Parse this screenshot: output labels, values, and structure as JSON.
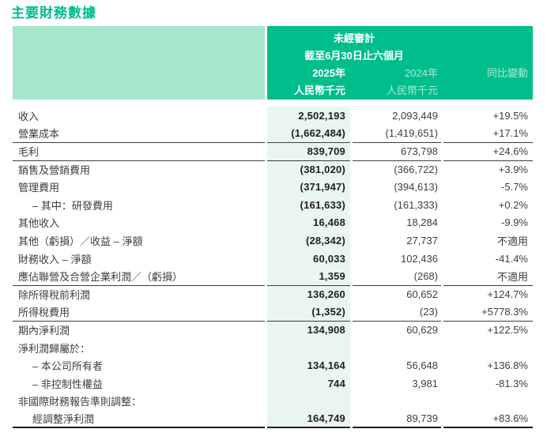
{
  "title": "主要財務數據",
  "colors": {
    "accent_green": "#00BE8C",
    "header_light_green": "#A7E5CD",
    "highlight_column_bg": "#E9F6F0",
    "number_bold_ink": "#1F1F1F",
    "body_text": "#3D3D3D",
    "rule_line": "#3C3C3C"
  },
  "table": {
    "header": {
      "unaudited": "未經審計",
      "period": "截至6月30日止六個月",
      "year_2025": "2025年",
      "year_2024": "2024年",
      "change": "同比變動",
      "unit_2025": "人民幣千元",
      "unit_2024": "人民幣千元"
    },
    "rows": [
      {
        "label": "收入",
        "v2025": "2,502,193",
        "v2024": "2,093,449",
        "change": "+19.5%",
        "indent": false,
        "rule_top": false
      },
      {
        "label": "營業成本",
        "v2025": "(1,662,484)",
        "v2024": "(1,419,651)",
        "change": "+17.1%",
        "indent": false,
        "rule_top": false
      },
      {
        "label": "毛利",
        "v2025": "839,709",
        "v2024": "673,798",
        "change": "+24.6%",
        "indent": false,
        "rule_top": true
      },
      {
        "label": "銷售及營銷費用",
        "v2025": "(381,020)",
        "v2024": "(366,722)",
        "change": "+3.9%",
        "indent": false,
        "rule_top": true
      },
      {
        "label": "管理費用",
        "v2025": "(371,947)",
        "v2024": "(394,613)",
        "change": "-5.7%",
        "indent": false,
        "rule_top": false
      },
      {
        "label": "– 其中：研發費用",
        "v2025": "(161,633)",
        "v2024": "(161,333)",
        "change": "+0.2%",
        "indent": true,
        "rule_top": false
      },
      {
        "label": "其他收入",
        "v2025": "16,468",
        "v2024": "18,284",
        "change": "-9.9%",
        "indent": false,
        "rule_top": false
      },
      {
        "label": "其他（虧損）／收益 – 淨額",
        "v2025": "(28,342)",
        "v2024": "27,737",
        "change": "不適用",
        "indent": false,
        "rule_top": false
      },
      {
        "label": "財務收入 – 淨額",
        "v2025": "60,033",
        "v2024": "102,436",
        "change": "-41.4%",
        "indent": false,
        "rule_top": false
      },
      {
        "label": "應佔聯營及合營企業利潤／（虧損）",
        "v2025": "1,359",
        "v2024": "(268)",
        "change": "不適用",
        "indent": false,
        "rule_top": false
      },
      {
        "label": "除所得稅前利潤",
        "v2025": "136,260",
        "v2024": "60,652",
        "change": "+124.7%",
        "indent": false,
        "rule_top": true
      },
      {
        "label": "所得稅費用",
        "v2025": "(1,352)",
        "v2024": "(23)",
        "change": "+5778.3%",
        "indent": false,
        "rule_top": false
      },
      {
        "label": "期內淨利潤",
        "v2025": "134,908",
        "v2024": "60,629",
        "change": "+122.5%",
        "indent": false,
        "rule_top": true
      },
      {
        "label": "淨利潤歸屬於：",
        "v2025": "",
        "v2024": "",
        "change": "",
        "indent": false,
        "rule_top": false
      },
      {
        "label": "– 本公司所有者",
        "v2025": "134,164",
        "v2024": "56,648",
        "change": "+136.8%",
        "indent": true,
        "rule_top": false
      },
      {
        "label": "– 非控制性權益",
        "v2025": "744",
        "v2024": "3,981",
        "change": "-81.3%",
        "indent": true,
        "rule_top": false
      },
      {
        "label": "非國際財務報告準則調整：",
        "v2025": "",
        "v2024": "",
        "change": "",
        "indent": false,
        "rule_top": false
      },
      {
        "label": "經調整淨利潤",
        "v2025": "164,749",
        "v2024": "89,739",
        "change": "+83.6%",
        "indent": true,
        "rule_top": false
      }
    ]
  }
}
